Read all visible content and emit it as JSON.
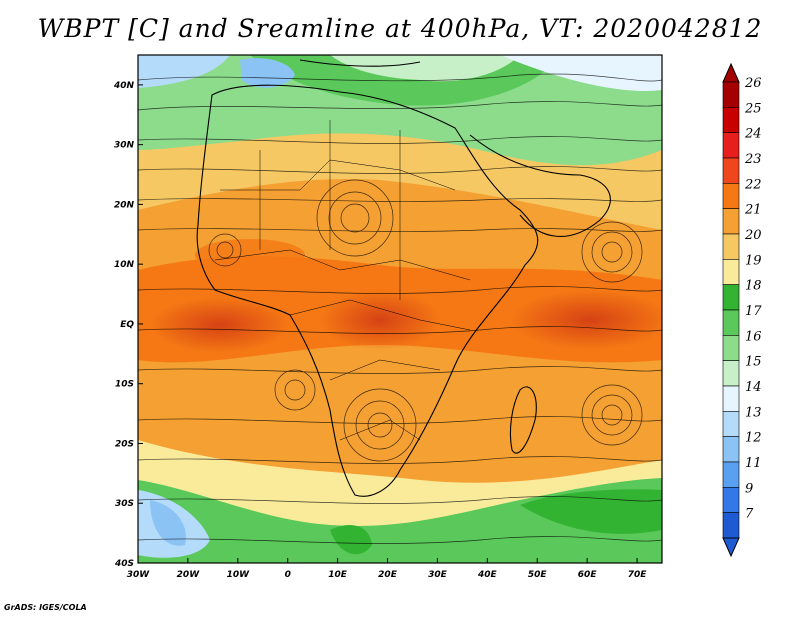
{
  "title": "WBPT [C] and Sreamline at 400hPa, VT: 2020042812",
  "credit": "GrADS: IGES/COLA",
  "map": {
    "lon_range": [
      -30,
      75
    ],
    "lat_range": [
      -40,
      45
    ],
    "lon_ticks": [
      {
        "v": -30,
        "label": "30W"
      },
      {
        "v": -20,
        "label": "20W"
      },
      {
        "v": -10,
        "label": "10W"
      },
      {
        "v": 0,
        "label": "0"
      },
      {
        "v": 10,
        "label": "10E"
      },
      {
        "v": 20,
        "label": "20E"
      },
      {
        "v": 30,
        "label": "30E"
      },
      {
        "v": 40,
        "label": "40E"
      },
      {
        "v": 50,
        "label": "50E"
      },
      {
        "v": 60,
        "label": "60E"
      },
      {
        "v": 70,
        "label": "70E"
      }
    ],
    "lat_ticks": [
      {
        "v": 40,
        "label": "40N"
      },
      {
        "v": 30,
        "label": "30N"
      },
      {
        "v": 20,
        "label": "20N"
      },
      {
        "v": 10,
        "label": "10N"
      },
      {
        "v": 0,
        "label": "EQ"
      },
      {
        "v": -10,
        "label": "10S"
      },
      {
        "v": -20,
        "label": "20S"
      },
      {
        "v": -30,
        "label": "30S"
      },
      {
        "v": -40,
        "label": "40S"
      }
    ]
  },
  "colorbar": {
    "labels": [
      "26",
      "25",
      "24",
      "23",
      "22",
      "21",
      "20",
      "19",
      "18",
      "17",
      "16",
      "15",
      "14",
      "13",
      "12",
      "11",
      "9",
      "7"
    ],
    "colors": [
      "#a50000",
      "#c80000",
      "#e61e1e",
      "#f0461e",
      "#f57814",
      "#f5a032",
      "#f5c864",
      "#faeb9b",
      "#32b432",
      "#5ac85a",
      "#8cdc8c",
      "#c8f0c8",
      "#e6f5ff",
      "#b4dcfa",
      "#8cc3f5",
      "#5aa0f0",
      "#3278e6",
      "#1e5ad2"
    ],
    "top_arrow_color": "#a50000",
    "bottom_arrow_color": "#1e5ad2"
  }
}
